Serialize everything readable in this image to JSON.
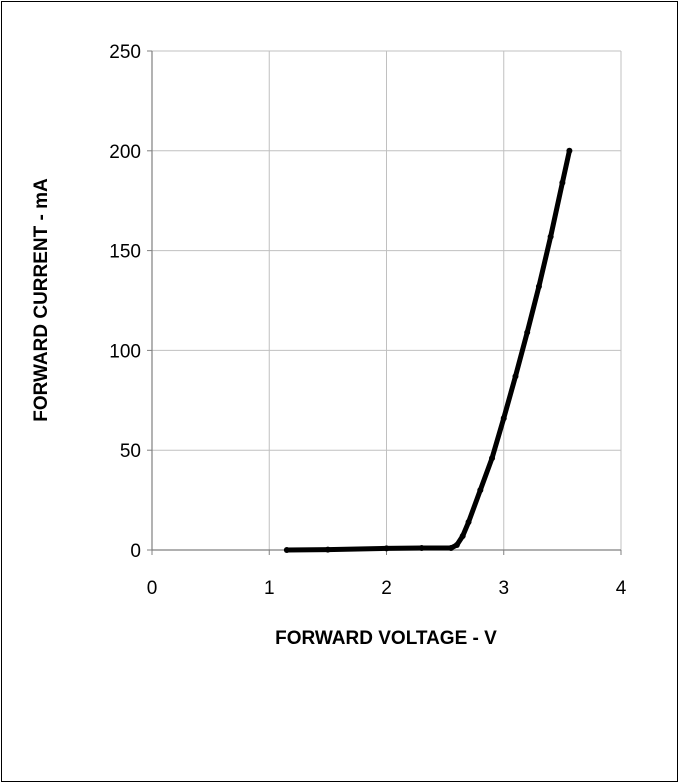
{
  "chart_data": {
    "type": "line",
    "xlabel": "FORWARD VOLTAGE - V",
    "ylabel": "FORWARD CURRENT - mA",
    "xlim": [
      0,
      4
    ],
    "ylim": [
      0,
      250
    ],
    "xticks": [
      0,
      1,
      2,
      3,
      4
    ],
    "yticks": [
      0,
      50,
      100,
      150,
      200,
      250
    ],
    "grid": true,
    "legend": "none",
    "series": [
      {
        "color": "#000000",
        "x": [
          1.15,
          1.5,
          2.0,
          2.3,
          2.55,
          2.6,
          2.65,
          2.7,
          2.8,
          2.9,
          3.0,
          3.1,
          3.2,
          3.3,
          3.4,
          3.5,
          3.56
        ],
        "y": [
          0,
          0.2,
          0.8,
          1.0,
          1.0,
          2.5,
          7,
          14,
          30,
          46,
          66,
          87,
          109,
          132,
          157,
          184,
          200
        ]
      }
    ]
  }
}
